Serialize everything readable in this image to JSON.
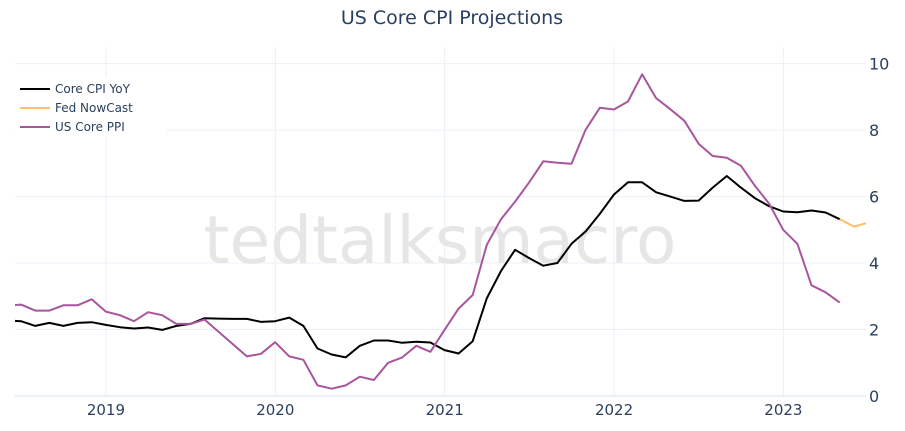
{
  "chart_data": {
    "type": "line",
    "title": "US Core CPI Projections",
    "watermark": "tedtalksmacro",
    "xlabel": "",
    "ylabel": "",
    "xlim": [
      "2018-06-19",
      "2023-06-28"
    ],
    "ylim": [
      0,
      10.5
    ],
    "grid": true,
    "legend_position": "top-left",
    "x_ticks": [
      "2019",
      "2020",
      "2021",
      "2022",
      "2023"
    ],
    "y_ticks": [
      0,
      2,
      4,
      6,
      8,
      10
    ],
    "series": [
      {
        "name": "Core CPI YoY",
        "color": "#000000",
        "start": "2018-05",
        "values": [
          2.27,
          2.25,
          2.11,
          2.2,
          2.11,
          2.2,
          2.22,
          2.14,
          2.07,
          2.03,
          2.06,
          1.99,
          2.11,
          2.17,
          2.34,
          2.33,
          2.32,
          2.32,
          2.23,
          2.25,
          2.36,
          2.11,
          1.43,
          1.25,
          1.16,
          1.51,
          1.67,
          1.67,
          1.6,
          1.63,
          1.61,
          1.38,
          1.28,
          1.65,
          2.94,
          3.76,
          4.4,
          4.15,
          3.92,
          4.0,
          4.58,
          4.95,
          5.48,
          6.06,
          6.43,
          6.43,
          6.13,
          6.0,
          5.87,
          5.88,
          6.27,
          6.62,
          6.27,
          5.95,
          5.71,
          5.55,
          5.53,
          5.58,
          5.52,
          5.32
        ]
      },
      {
        "name": "Fed NowCast",
        "color": "#fdbf6f",
        "start": "2023-04",
        "values": [
          5.32,
          5.1,
          5.21
        ]
      },
      {
        "name": "US Core PPI",
        "color": "#a8559e",
        "start": "2018-05",
        "values": [
          2.72,
          2.75,
          2.57,
          2.57,
          2.73,
          2.73,
          2.91,
          2.54,
          2.43,
          2.25,
          2.52,
          2.43,
          2.17,
          2.17,
          2.3,
          1.93,
          1.56,
          1.19,
          1.27,
          1.62,
          1.19,
          1.09,
          0.32,
          0.22,
          0.32,
          0.58,
          0.48,
          1.0,
          1.16,
          1.51,
          1.33,
          1.99,
          2.63,
          3.04,
          4.55,
          5.32,
          5.85,
          6.43,
          7.06,
          7.02,
          6.99,
          8.01,
          8.67,
          8.62,
          8.86,
          9.68,
          8.96,
          8.63,
          8.28,
          7.59,
          7.22,
          7.17,
          6.93,
          6.32,
          5.79,
          5.0,
          4.58,
          3.33,
          3.12,
          2.81
        ]
      }
    ]
  }
}
